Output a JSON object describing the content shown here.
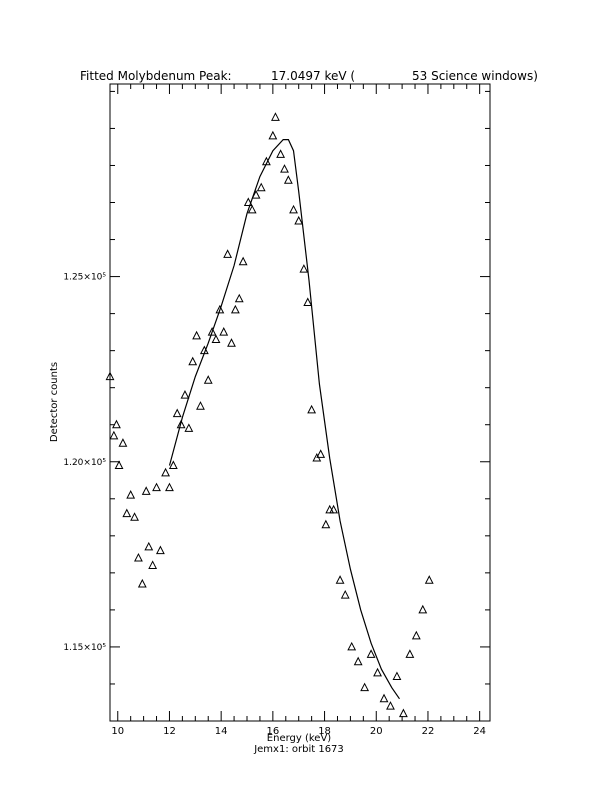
{
  "chart_data": {
    "type": "scatter",
    "title": {
      "prefix": "Fitted Molybdenum Peak:",
      "energy": "17.0497 keV (",
      "windows": "53 Science windows)"
    },
    "xlabel": "Energy (keV)",
    "ylabel": "Detector counts",
    "footer": "Jemx1: orbit 1673",
    "xlim": [
      9.7,
      24.4
    ],
    "ylim": [
      113000,
      130200
    ],
    "x_ticks": [
      10,
      12,
      14,
      16,
      18,
      20,
      22,
      24
    ],
    "y_ticks": [
      {
        "value": 115000,
        "label": "1.15×10⁵"
      },
      {
        "value": 120000,
        "label": "1.20×10⁵"
      },
      {
        "value": 125000,
        "label": "1.25×10⁵"
      }
    ],
    "grid": false,
    "series": [
      {
        "marker": "triangle",
        "points": [
          [
            9.7,
            122300
          ],
          [
            9.85,
            120700
          ],
          [
            9.95,
            121000
          ],
          [
            10.05,
            119900
          ],
          [
            10.2,
            120500
          ],
          [
            10.35,
            118600
          ],
          [
            10.5,
            119100
          ],
          [
            10.65,
            118500
          ],
          [
            10.8,
            117400
          ],
          [
            10.95,
            116700
          ],
          [
            11.1,
            119200
          ],
          [
            11.2,
            117700
          ],
          [
            11.35,
            117200
          ],
          [
            11.5,
            119300
          ],
          [
            11.65,
            117600
          ],
          [
            11.85,
            119700
          ],
          [
            12.0,
            119300
          ],
          [
            12.15,
            119900
          ],
          [
            12.3,
            121300
          ],
          [
            12.45,
            121000
          ],
          [
            12.6,
            121800
          ],
          [
            12.75,
            120900
          ],
          [
            12.9,
            122700
          ],
          [
            13.05,
            123400
          ],
          [
            13.2,
            121500
          ],
          [
            13.35,
            123000
          ],
          [
            13.5,
            122200
          ],
          [
            13.65,
            123500
          ],
          [
            13.8,
            123300
          ],
          [
            13.95,
            124100
          ],
          [
            14.1,
            123500
          ],
          [
            14.25,
            125600
          ],
          [
            14.4,
            123200
          ],
          [
            14.55,
            124100
          ],
          [
            14.7,
            124400
          ],
          [
            14.85,
            125400
          ],
          [
            15.05,
            127000
          ],
          [
            15.2,
            126800
          ],
          [
            15.35,
            127200
          ],
          [
            15.55,
            127400
          ],
          [
            15.75,
            128100
          ],
          [
            16.0,
            128800
          ],
          [
            16.1,
            129300
          ],
          [
            16.3,
            128300
          ],
          [
            16.45,
            127900
          ],
          [
            16.6,
            127600
          ],
          [
            16.8,
            126800
          ],
          [
            17.0,
            126500
          ],
          [
            17.2,
            125200
          ],
          [
            17.35,
            124300
          ],
          [
            17.5,
            121400
          ],
          [
            17.7,
            120100
          ],
          [
            17.85,
            120200
          ],
          [
            18.05,
            118300
          ],
          [
            18.2,
            118700
          ],
          [
            18.35,
            118700
          ],
          [
            18.6,
            116800
          ],
          [
            18.8,
            116400
          ],
          [
            19.05,
            115000
          ],
          [
            19.3,
            114600
          ],
          [
            19.55,
            113900
          ],
          [
            19.8,
            114800
          ],
          [
            20.05,
            114300
          ],
          [
            20.3,
            113600
          ],
          [
            20.55,
            113400
          ],
          [
            20.8,
            114200
          ],
          [
            21.05,
            113200
          ],
          [
            21.3,
            114800
          ],
          [
            21.55,
            115300
          ],
          [
            21.8,
            116000
          ],
          [
            22.05,
            116800
          ]
        ]
      }
    ],
    "fit_line": [
      [
        12.0,
        119900
      ],
      [
        12.5,
        121200
      ],
      [
        13.0,
        122300
      ],
      [
        13.5,
        123200
      ],
      [
        14.0,
        124200
      ],
      [
        14.5,
        125300
      ],
      [
        15.0,
        126700
      ],
      [
        15.5,
        127700
      ],
      [
        16.0,
        128400
      ],
      [
        16.4,
        128700
      ],
      [
        16.6,
        128700
      ],
      [
        16.8,
        128400
      ],
      [
        17.0,
        127300
      ],
      [
        17.4,
        124900
      ],
      [
        17.8,
        122100
      ],
      [
        18.2,
        120100
      ],
      [
        18.6,
        118400
      ],
      [
        19.0,
        117100
      ],
      [
        19.4,
        116000
      ],
      [
        19.8,
        115100
      ],
      [
        20.2,
        114400
      ],
      [
        20.6,
        113900
      ],
      [
        20.9,
        113600
      ]
    ]
  }
}
